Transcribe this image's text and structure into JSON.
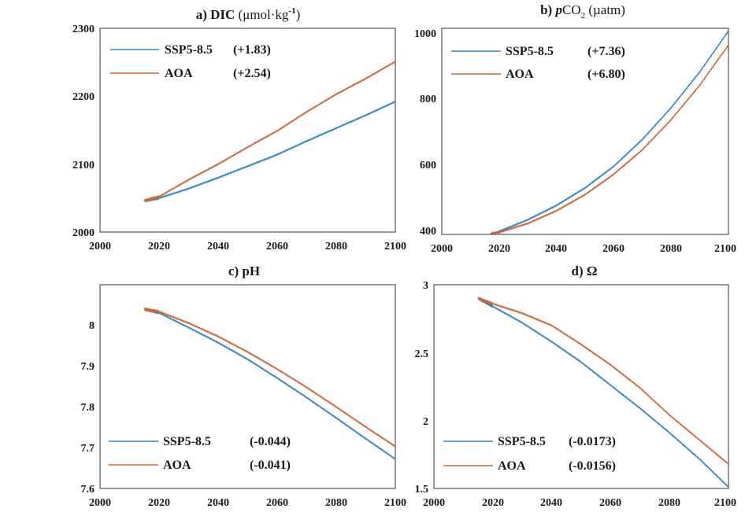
{
  "chart_data": [
    {
      "type": "line",
      "title_prefix": "a) DIC",
      "title_unit": "(μmol·kg",
      "title_sup": "-1",
      "title_close": ")",
      "xlim": [
        2000,
        2100
      ],
      "ylim": [
        2000,
        2300
      ],
      "x_ticks": [
        "2000",
        "2020",
        "2040",
        "2060",
        "2080",
        "2100"
      ],
      "y_ticks": [
        "2000",
        "2100",
        "2200",
        "2300"
      ],
      "legend_position": "top-left",
      "series": [
        {
          "name": "SSP5-8.5",
          "trend": "(+1.83)",
          "color": "#2f86bf",
          "x": [
            2015,
            2020,
            2030,
            2040,
            2050,
            2060,
            2070,
            2080,
            2090,
            2100
          ],
          "y": [
            2046,
            2050,
            2064,
            2080,
            2097,
            2114,
            2134,
            2153,
            2172,
            2192
          ]
        },
        {
          "name": "AOA",
          "trend": "(+2.54)",
          "color": "#cc6633",
          "x": [
            2015,
            2020,
            2030,
            2040,
            2050,
            2060,
            2070,
            2080,
            2090,
            2100
          ],
          "y": [
            2046,
            2052,
            2077,
            2100,
            2125,
            2149,
            2177,
            2203,
            2226,
            2251
          ]
        }
      ]
    },
    {
      "type": "line",
      "title_prefix": "b) ",
      "title_p": "p",
      "title_co": "CO",
      "title_sub": "2",
      "title_unit": " (µatm)",
      "xlim": [
        2000,
        2100
      ],
      "ylim": [
        390,
        1010
      ],
      "x_ticks": [
        "2000",
        "2020",
        "2040",
        "2060",
        "2080",
        "2100"
      ],
      "y_ticks": [
        "400",
        "600",
        "800",
        "1000"
      ],
      "legend_position": "top-left",
      "series": [
        {
          "name": "SSP5-8.5",
          "trend": "(+7.36)",
          "color": "#2f86bf",
          "x": [
            2017,
            2020,
            2030,
            2040,
            2050,
            2060,
            2070,
            2080,
            2090,
            2100
          ],
          "y": [
            392,
            399,
            434,
            477,
            530,
            595,
            676,
            771,
            879,
            1002
          ]
        },
        {
          "name": "AOA",
          "trend": "(+6.80)",
          "color": "#cc6633",
          "x": [
            2017,
            2020,
            2030,
            2040,
            2050,
            2060,
            2070,
            2080,
            2090,
            2100
          ],
          "y": [
            392,
            396,
            423,
            461,
            510,
            571,
            645,
            735,
            839,
            960
          ]
        }
      ]
    },
    {
      "type": "line",
      "title_prefix": "c) pH",
      "xlim": [
        2000,
        2100
      ],
      "ylim": [
        7.6,
        8.1
      ],
      "x_ticks": [
        "2000",
        "2020",
        "2040",
        "2060",
        "2080",
        "2100"
      ],
      "y_ticks": [
        "7.6",
        "7.7",
        "7.8",
        "7.9",
        "8"
      ],
      "legend_position": "bottom-left",
      "series": [
        {
          "name": "SSP5-8.5",
          "trend": "(-0.044)",
          "color": "#2f86bf",
          "x": [
            2015,
            2020,
            2030,
            2040,
            2050,
            2060,
            2070,
            2080,
            2090,
            2100
          ],
          "y": [
            8.04,
            8.031,
            7.995,
            7.958,
            7.917,
            7.871,
            7.823,
            7.773,
            7.722,
            7.672
          ]
        },
        {
          "name": "AOA",
          "trend": "(-0.041)",
          "color": "#cc6633",
          "x": [
            2015,
            2020,
            2030,
            2040,
            2050,
            2060,
            2070,
            2080,
            2090,
            2100
          ],
          "y": [
            8.04,
            8.034,
            8.006,
            7.973,
            7.935,
            7.893,
            7.848,
            7.8,
            7.751,
            7.703
          ]
        }
      ]
    },
    {
      "type": "line",
      "title_prefix": "d) Ω",
      "xlim": [
        2000,
        2100
      ],
      "ylim": [
        1.5,
        3.0
      ],
      "x_ticks": [
        "2000",
        "2020",
        "2040",
        "2060",
        "2080",
        "2100"
      ],
      "y_ticks": [
        "1.5",
        "2",
        "2.5",
        "3"
      ],
      "legend_position": "bottom-left",
      "series": [
        {
          "name": "SSP5-8.5",
          "trend": "(-0.0173)",
          "color": "#2f86bf",
          "x": [
            2015,
            2020,
            2030,
            2040,
            2050,
            2060,
            2070,
            2080,
            2090,
            2100
          ],
          "y": [
            2.9,
            2.84,
            2.72,
            2.58,
            2.43,
            2.26,
            2.09,
            1.91,
            1.72,
            1.51
          ]
        },
        {
          "name": "AOA",
          "trend": "(-0.0156)",
          "color": "#cc6633",
          "x": [
            2015,
            2020,
            2030,
            2040,
            2050,
            2060,
            2070,
            2080,
            2090,
            2100
          ],
          "y": [
            2.9,
            2.86,
            2.79,
            2.7,
            2.56,
            2.41,
            2.24,
            2.04,
            1.86,
            1.68
          ]
        }
      ]
    }
  ]
}
